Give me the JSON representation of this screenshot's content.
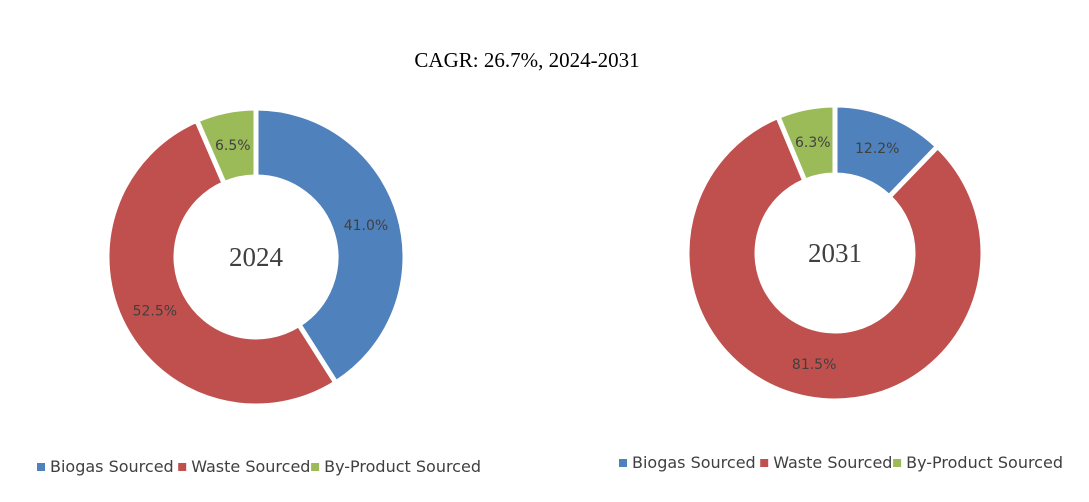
{
  "page_title": "CAGR:   26.7%, 2024-2031",
  "chart_data": [
    {
      "type": "pie",
      "variant": "donut",
      "center_label": "2024",
      "categories": [
        "Biogas Sourced",
        "Waste Sourced",
        "By-Product Sourced"
      ],
      "values": [
        41.0,
        52.5,
        6.5
      ],
      "data_labels": [
        "41.0%",
        "52.5%",
        "6.5%"
      ],
      "colors": [
        "#4F81BD",
        "#C0504D",
        "#9BBB59"
      ],
      "legend": [
        "Biogas Sourced",
        "Waste Sourced",
        "By-Product Sourced"
      ],
      "legend_position": "bottom"
    },
    {
      "type": "pie",
      "variant": "donut",
      "center_label": "2031",
      "categories": [
        "Biogas Sourced",
        "Waste Sourced",
        "By-Product Sourced"
      ],
      "values": [
        12.2,
        81.5,
        6.3
      ],
      "data_labels": [
        "12.2%",
        "81.5%",
        "6.3%"
      ],
      "colors": [
        "#4F81BD",
        "#C0504D",
        "#9BBB59"
      ],
      "legend": [
        "Biogas Sourced",
        "Waste Sourced",
        "By-Product Sourced"
      ],
      "legend_position": "bottom"
    }
  ]
}
